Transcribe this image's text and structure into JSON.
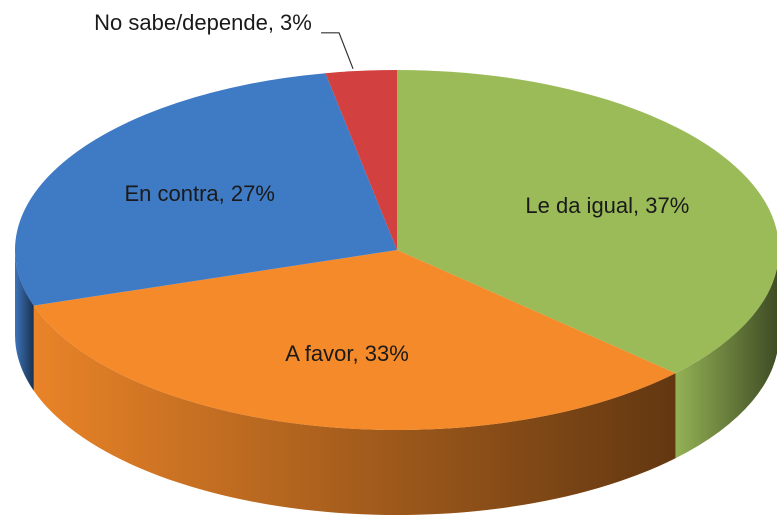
{
  "chart_data": {
    "type": "pie",
    "values": [
      37,
      33,
      27,
      3
    ],
    "value_labels": [
      "Le da igual, 37%",
      "A favor, 33%",
      "En contra, 27%",
      "No sabe/depende, 3%"
    ],
    "colors": [
      "#9bbb59",
      "#f58a2a",
      "#3f7ac4",
      "#d24040"
    ]
  }
}
